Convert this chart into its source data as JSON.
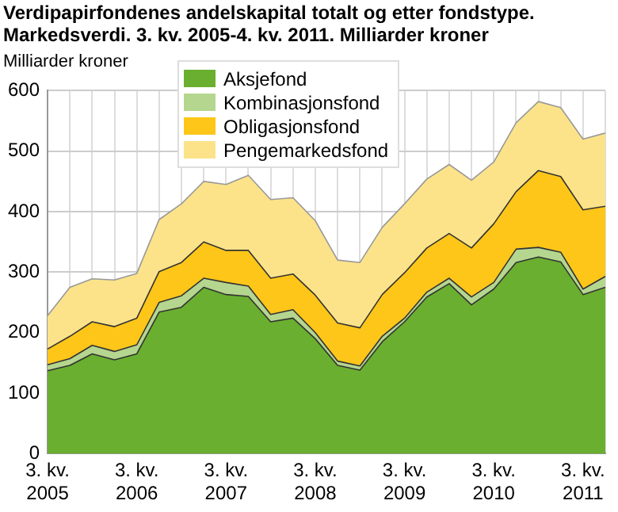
{
  "chart_data": {
    "type": "area",
    "title": "Verdipapirfondenes andelskapital totalt og etter fondstype. Markedsverdi. 3. kv. 2005-4. kv. 2011. Milliarder kroner",
    "ylabel": "Milliarder kroner",
    "categories": [
      "3. kv. 2005",
      null,
      null,
      null,
      "3. kv. 2006",
      null,
      null,
      null,
      "3. kv. 2007",
      null,
      null,
      null,
      "3. kv. 2008",
      null,
      null,
      null,
      "3. kv. 2009",
      null,
      null,
      null,
      "3. kv. 2010",
      null,
      null,
      null,
      "3. kv. 2011",
      null
    ],
    "stacked": true,
    "series": [
      {
        "name": "Aksjefond",
        "color": "#6aaf2f",
        "values": [
          137,
          146,
          165,
          155,
          165,
          234,
          242,
          275,
          263,
          260,
          218,
          224,
          190,
          146,
          138,
          185,
          218,
          259,
          281,
          246,
          272,
          316,
          325,
          317,
          263,
          275
        ]
      },
      {
        "name": "Kombinasjonsfond",
        "color": "#b5d68f",
        "values": [
          10,
          11,
          14,
          14,
          15,
          16,
          19,
          15,
          20,
          17,
          12,
          14,
          10,
          7,
          7,
          9,
          6,
          8,
          9,
          13,
          11,
          22,
          16,
          16,
          9,
          18
        ]
      },
      {
        "name": "Obligasjonsfond",
        "color": "#fdc619",
        "values": [
          26,
          37,
          39,
          41,
          44,
          51,
          55,
          60,
          53,
          59,
          60,
          59,
          62,
          63,
          63,
          69,
          75,
          73,
          74,
          81,
          97,
          95,
          127,
          125,
          131,
          116
        ]
      },
      {
        "name": "Pengemarkedsfond",
        "color": "#fce38a",
        "values": [
          55,
          81,
          71,
          77,
          74,
          86,
          97,
          100,
          109,
          124,
          130,
          126,
          123,
          104,
          108,
          111,
          114,
          114,
          114,
          112,
          102,
          114,
          114,
          114,
          117,
          121
        ]
      }
    ],
    "ylim": [
      0,
      600
    ],
    "yticks": [
      0,
      100,
      200,
      300,
      400,
      500,
      600
    ],
    "grid": true,
    "legend": "top"
  }
}
